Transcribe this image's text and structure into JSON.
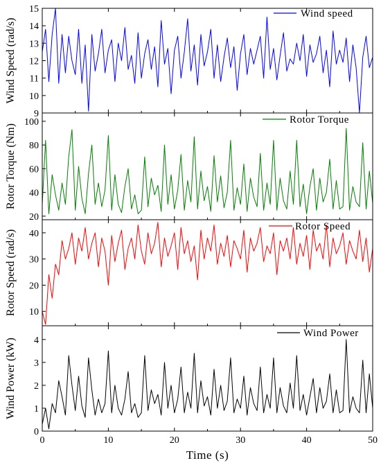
{
  "chart_data": [
    {
      "type": "line",
      "ylabel": "Wind Speed (rad/s)",
      "ylim": [
        9,
        15
      ],
      "yticks": [
        9,
        10,
        11,
        12,
        13,
        14,
        15
      ],
      "xlim": [
        0,
        50
      ],
      "series": [
        {
          "name": "Wind speed",
          "color": "#0000ff",
          "x": [
            0,
            0.5,
            1,
            1.5,
            2,
            2.5,
            3,
            3.5,
            4,
            4.5,
            5,
            5.5,
            6,
            6.5,
            7,
            7.5,
            8,
            8.5,
            9,
            9.5,
            10,
            10.5,
            11,
            11.5,
            12,
            12.5,
            13,
            13.5,
            14,
            14.5,
            15,
            15.5,
            16,
            16.5,
            17,
            17.5,
            18,
            18.5,
            19,
            19.5,
            20,
            20.5,
            21,
            21.5,
            22,
            22.5,
            23,
            23.5,
            24,
            24.5,
            25,
            25.5,
            26,
            26.5,
            27,
            27.5,
            28,
            28.5,
            29,
            29.5,
            30,
            30.5,
            31,
            31.5,
            32,
            32.5,
            33,
            33.5,
            34,
            34.5,
            35,
            35.5,
            36,
            36.5,
            37,
            37.5,
            38,
            38.5,
            39,
            39.5,
            40,
            40.5,
            41,
            41.5,
            42,
            42.5,
            43,
            43.5,
            44,
            44.5,
            45,
            45.5,
            46,
            46.5,
            47,
            47.5,
            48,
            48.5,
            49,
            49.5,
            50
          ],
          "values": [
            12.5,
            13.8,
            10.8,
            13.5,
            15,
            10.7,
            13.5,
            11.3,
            13.4,
            12.0,
            11.2,
            13.8,
            10.7,
            12.9,
            9.1,
            13.5,
            11.4,
            12.4,
            13.8,
            11.3,
            12.6,
            13.2,
            10.8,
            13.0,
            12.0,
            13.9,
            11.5,
            12.3,
            10.7,
            13.6,
            11.0,
            12.4,
            13.2,
            11.5,
            12.8,
            10.5,
            14.3,
            11.8,
            12.7,
            10.1,
            12.6,
            13.4,
            11.0,
            12.5,
            14.4,
            11.4,
            12.9,
            10.6,
            13.5,
            11.7,
            12.5,
            13.8,
            11.0,
            12.9,
            10.8,
            12.2,
            13.3,
            11.6,
            12.8,
            10.3,
            12.4,
            13.5,
            11.2,
            12.7,
            11.8,
            12.6,
            13.4,
            11.0,
            14.5,
            11.5,
            12.7,
            10.9,
            12.3,
            13.6,
            11.4,
            12.1,
            11.8,
            13.0,
            12.0,
            13.5,
            11.1,
            12.9,
            11.9,
            12.4,
            13.4,
            11.3,
            12.6,
            10.5,
            13.7,
            11.8,
            12.6,
            11.9,
            13.3,
            10.8,
            12.9,
            11.6,
            9.0,
            12.2,
            13.4,
            11.6,
            12.2
          ]
        }
      ]
    },
    {
      "type": "line",
      "ylabel": "Rotor Torque (Nm)",
      "ylim": [
        17,
        107
      ],
      "yticks": [
        20,
        40,
        60,
        80,
        100
      ],
      "xlim": [
        0,
        50
      ],
      "series": [
        {
          "name": "Rotor Torque",
          "color": "#008000",
          "x": [
            0,
            0.5,
            1,
            1.5,
            2,
            2.5,
            3,
            3.5,
            4,
            4.5,
            5,
            5.5,
            6,
            6.5,
            7,
            7.5,
            8,
            8.5,
            9,
            9.5,
            10,
            10.5,
            11,
            11.5,
            12,
            12.5,
            13,
            13.5,
            14,
            14.5,
            15,
            15.5,
            16,
            16.5,
            17,
            17.5,
            18,
            18.5,
            19,
            19.5,
            20,
            20.5,
            21,
            21.5,
            22,
            22.5,
            23,
            23.5,
            24,
            24.5,
            25,
            25.5,
            26,
            26.5,
            27,
            27.5,
            28,
            28.5,
            29,
            29.5,
            30,
            30.5,
            31,
            31.5,
            32,
            32.5,
            33,
            33.5,
            34,
            34.5,
            35,
            35.5,
            36,
            36.5,
            37,
            37.5,
            38,
            38.5,
            39,
            39.5,
            40,
            40.5,
            41,
            41.5,
            42,
            42.5,
            43,
            43.5,
            44,
            44.5,
            45,
            45.5,
            46,
            46.5,
            47,
            47.5,
            48,
            48.5,
            49,
            49.5,
            50
          ],
          "values": [
            30,
            84,
            22,
            55,
            38,
            25,
            48,
            30,
            70,
            93,
            25,
            62,
            35,
            22,
            56,
            80,
            30,
            48,
            28,
            42,
            88,
            25,
            55,
            30,
            23,
            45,
            60,
            26,
            38,
            22,
            25,
            70,
            28,
            52,
            38,
            46,
            24,
            80,
            30,
            55,
            26,
            42,
            72,
            25,
            50,
            32,
            87,
            26,
            58,
            33,
            45,
            24,
            71,
            32,
            54,
            27,
            40,
            84,
            25,
            44,
            30,
            64,
            24,
            52,
            36,
            28,
            73,
            25,
            48,
            30,
            84,
            25,
            52,
            33,
            26,
            58,
            30,
            84,
            28,
            47,
            22,
            45,
            60,
            25,
            52,
            32,
            40,
            68,
            26,
            50,
            26,
            28,
            94,
            25,
            45,
            32,
            28,
            82,
            26,
            58,
            31
          ]
        }
      ]
    },
    {
      "type": "line",
      "ylabel": "Rotor Speed (rad/s)",
      "ylim": [
        4.5,
        45
      ],
      "yticks": [
        10,
        20,
        30,
        40
      ],
      "xlim": [
        0,
        50
      ],
      "series": [
        {
          "name": "Rotor Speed",
          "color": "#ff0000",
          "x": [
            0,
            0.5,
            1,
            1.5,
            2,
            2.5,
            3,
            3.5,
            4,
            4.5,
            5,
            5.5,
            6,
            6.5,
            7,
            7.5,
            8,
            8.5,
            9,
            9.5,
            10,
            10.5,
            11,
            11.5,
            12,
            12.5,
            13,
            13.5,
            14,
            14.5,
            15,
            15.5,
            16,
            16.5,
            17,
            17.5,
            18,
            18.5,
            19,
            19.5,
            20,
            20.5,
            21,
            21.5,
            22,
            22.5,
            23,
            23.5,
            24,
            24.5,
            25,
            25.5,
            26,
            26.5,
            27,
            27.5,
            28,
            28.5,
            29,
            29.5,
            30,
            30.5,
            31,
            31.5,
            32,
            32.5,
            33,
            33.5,
            34,
            34.5,
            35,
            35.5,
            36,
            36.5,
            37,
            37.5,
            38,
            38.5,
            39,
            39.5,
            40,
            40.5,
            41,
            41.5,
            42,
            42.5,
            43,
            43.5,
            44,
            44.5,
            45,
            45.5,
            46,
            46.5,
            47,
            47.5,
            48,
            48.5,
            49,
            49.5,
            50
          ],
          "values": [
            10,
            5,
            24,
            15,
            28,
            24,
            37,
            30,
            34,
            40,
            28,
            38,
            33,
            42,
            30,
            36,
            40,
            27,
            38,
            33,
            20,
            39,
            29,
            36,
            41,
            26,
            34,
            38,
            30,
            43,
            33,
            28,
            40,
            32,
            36,
            44,
            27,
            38,
            31,
            35,
            40,
            26,
            42,
            32,
            37,
            29,
            35,
            22,
            41,
            30,
            38,
            33,
            43,
            28,
            36,
            31,
            39,
            27,
            37,
            34,
            30,
            41,
            25,
            38,
            33,
            36,
            42,
            29,
            35,
            32,
            40,
            24,
            37,
            33,
            38,
            30,
            42,
            28,
            36,
            31,
            39,
            26,
            41,
            33,
            36,
            30,
            43,
            27,
            38,
            32,
            35,
            40,
            28,
            37,
            33,
            30,
            41,
            29,
            38,
            25,
            34
          ]
        }
      ]
    },
    {
      "type": "line",
      "ylabel": "Wind Power (kW)",
      "ylim": [
        0,
        4.6
      ],
      "yticks": [
        0,
        1,
        2,
        3,
        4
      ],
      "xlabel": "Time (s)",
      "xlim": [
        0,
        50
      ],
      "xticks": [
        0,
        10,
        20,
        30,
        40,
        50
      ],
      "series": [
        {
          "name": "Wind Power",
          "color": "#000000",
          "x": [
            0,
            0.5,
            1,
            1.5,
            2,
            2.5,
            3,
            3.5,
            4,
            4.5,
            5,
            5.5,
            6,
            6.5,
            7,
            7.5,
            8,
            8.5,
            9,
            9.5,
            10,
            10.5,
            11,
            11.5,
            12,
            12.5,
            13,
            13.5,
            14,
            14.5,
            15,
            15.5,
            16,
            16.5,
            17,
            17.5,
            18,
            18.5,
            19,
            19.5,
            20,
            20.5,
            21,
            21.5,
            22,
            22.5,
            23,
            23.5,
            24,
            24.5,
            25,
            25.5,
            26,
            26.5,
            27,
            27.5,
            28,
            28.5,
            29,
            29.5,
            30,
            30.5,
            31,
            31.5,
            32,
            32.5,
            33,
            33.5,
            34,
            34.5,
            35,
            35.5,
            36,
            36.5,
            37,
            37.5,
            38,
            38.5,
            39,
            39.5,
            40,
            40.5,
            41,
            41.5,
            42,
            42.5,
            43,
            43.5,
            44,
            44.5,
            45,
            45.5,
            46,
            46.5,
            47,
            47.5,
            48,
            48.5,
            49,
            49.5,
            50
          ],
          "values": [
            0.3,
            1.0,
            0.1,
            1.2,
            0.8,
            2.2,
            1.5,
            0.7,
            3.3,
            2.0,
            0.9,
            2.4,
            1.1,
            0.6,
            3.2,
            1.8,
            0.7,
            1.4,
            0.8,
            1.2,
            3.5,
            0.8,
            2.0,
            1.0,
            0.7,
            1.4,
            2.6,
            0.8,
            1.2,
            0.6,
            0.8,
            3.3,
            0.9,
            1.8,
            1.2,
            1.6,
            0.7,
            3.0,
            1.0,
            2.0,
            0.8,
            1.4,
            2.8,
            0.8,
            1.7,
            1.0,
            3.4,
            0.8,
            2.2,
            1.1,
            1.5,
            0.7,
            2.7,
            1.0,
            2.0,
            0.9,
            1.3,
            3.2,
            0.8,
            1.4,
            1.0,
            2.4,
            0.7,
            1.9,
            1.2,
            0.9,
            2.8,
            0.8,
            1.6,
            1.0,
            3.2,
            0.8,
            1.9,
            1.1,
            0.8,
            2.1,
            1.0,
            3.3,
            0.9,
            1.6,
            0.7,
            1.5,
            2.3,
            0.8,
            1.9,
            1.0,
            1.3,
            2.5,
            0.8,
            1.8,
            0.8,
            0.9,
            4.0,
            0.8,
            1.5,
            1.0,
            0.8,
            3.1,
            0.8,
            2.5,
            1.0
          ]
        }
      ]
    }
  ]
}
